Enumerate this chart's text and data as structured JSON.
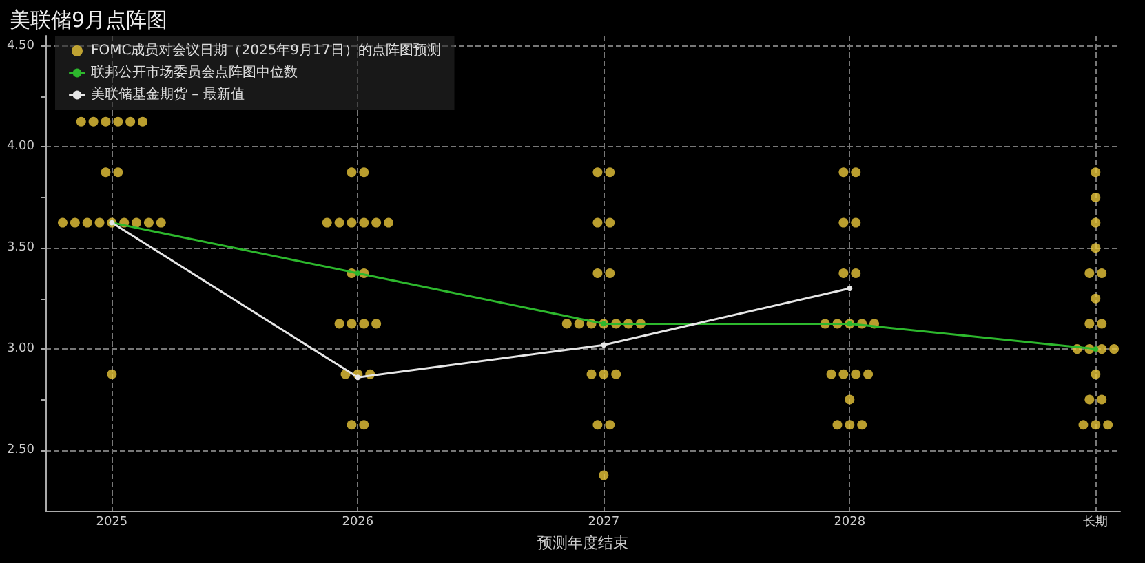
{
  "chart_data": {
    "type": "scatter",
    "title": "美联储9月点阵图",
    "xlabel": "预测年度结束",
    "xlim": [
      2024.73,
      2029.1
    ],
    "xticks": [
      2025,
      2026,
      2027,
      2028,
      {
        "value": 2029,
        "label": "长期"
      }
    ],
    "ylim": [
      2.2,
      4.55
    ],
    "yticks": [
      {
        "value": 2.5,
        "label": "2.50"
      },
      {
        "value": 2.75,
        "label": null
      },
      {
        "value": 3.0,
        "label": "3.00"
      },
      {
        "value": 3.25,
        "label": null
      },
      {
        "value": 3.5,
        "label": "3.50"
      },
      {
        "value": 3.75,
        "label": null
      },
      {
        "value": 4.0,
        "label": "4.00"
      },
      {
        "value": 4.25,
        "label": null
      },
      {
        "value": 4.5,
        "label": "4.50"
      }
    ],
    "grid": true,
    "legend": "top left",
    "series": [
      {
        "name": "FOMC成员对会议日期（2025年9月17日）的点阵图预测",
        "marker": "circle",
        "color": "#e8c53a",
        "x": [
          2024.875,
          2024.925,
          2024.975,
          2025.025,
          2025.075,
          2025.125,
          2024.975,
          2025.025,
          2024.8,
          2024.85,
          2024.9,
          2024.95,
          2025,
          2025.05,
          2025.1,
          2025.15,
          2025.2,
          2025,
          2025.975,
          2026.025,
          2025.875,
          2025.925,
          2025.975,
          2026.025,
          2026.075,
          2026.125,
          2025.975,
          2026.025,
          2025.925,
          2025.975,
          2026.025,
          2026.075,
          2025.95,
          2026,
          2026.05,
          2025.975,
          2026.025,
          2026.975,
          2027.025,
          2026.975,
          2027.025,
          2026.975,
          2027.025,
          2026.85,
          2026.9,
          2026.95,
          2027,
          2027.05,
          2027.1,
          2027.15,
          2026.95,
          2027,
          2027.05,
          2026.975,
          2027.025,
          2027,
          2027.975,
          2028.025,
          2027.975,
          2028.025,
          2027.975,
          2028.025,
          2027.9,
          2027.95,
          2028,
          2028.05,
          2028.1,
          2027.925,
          2027.975,
          2028.025,
          2028.075,
          2028,
          2027.95,
          2028,
          2028.05,
          2029,
          2029,
          2029,
          2029,
          2028.975,
          2029.025,
          2029,
          2028.975,
          2029.025,
          2028.925,
          2028.975,
          2029.025,
          2029.075,
          2029,
          2028.975,
          2029.025,
          2028.95,
          2029,
          2029.05
        ],
        "values": [
          4.125,
          4.125,
          4.125,
          4.125,
          4.125,
          4.125,
          3.875,
          3.875,
          3.625,
          3.625,
          3.625,
          3.625,
          3.625,
          3.625,
          3.625,
          3.625,
          3.625,
          2.875,
          3.875,
          3.875,
          3.625,
          3.625,
          3.625,
          3.625,
          3.625,
          3.625,
          3.375,
          3.375,
          3.125,
          3.125,
          3.125,
          3.125,
          2.875,
          2.875,
          2.875,
          2.625,
          2.625,
          3.875,
          3.875,
          3.625,
          3.625,
          3.375,
          3.375,
          3.125,
          3.125,
          3.125,
          3.125,
          3.125,
          3.125,
          3.125,
          2.875,
          2.875,
          2.875,
          2.625,
          2.625,
          2.375,
          3.875,
          3.875,
          3.625,
          3.625,
          3.375,
          3.375,
          3.125,
          3.125,
          3.125,
          3.125,
          3.125,
          2.875,
          2.875,
          2.875,
          2.875,
          2.75,
          2.625,
          2.625,
          2.625,
          3.875,
          3.75,
          3.625,
          3.5,
          3.375,
          3.375,
          3.25,
          3.125,
          3.125,
          3.0,
          3.0,
          3.0,
          3.0,
          2.875,
          2.75,
          2.75,
          2.625,
          2.625,
          2.625
        ]
      },
      {
        "name": "联邦公开市场委员会点阵图中位数",
        "type": "line",
        "marker": "circle",
        "line_style": "solid",
        "color": "#2db82d",
        "x": [
          2025,
          2026,
          2027,
          2028,
          2029
        ],
        "values": [
          3.625,
          3.375,
          3.125,
          3.125,
          3.0
        ]
      },
      {
        "name": "美联储基金期货 – 最新值",
        "type": "line",
        "marker": "circle",
        "line_style": "solid",
        "color": "#e6e6e6",
        "x": [
          2025,
          2026,
          2027,
          2028
        ],
        "values": [
          3.625,
          2.86,
          3.02,
          3.3
        ]
      }
    ]
  }
}
